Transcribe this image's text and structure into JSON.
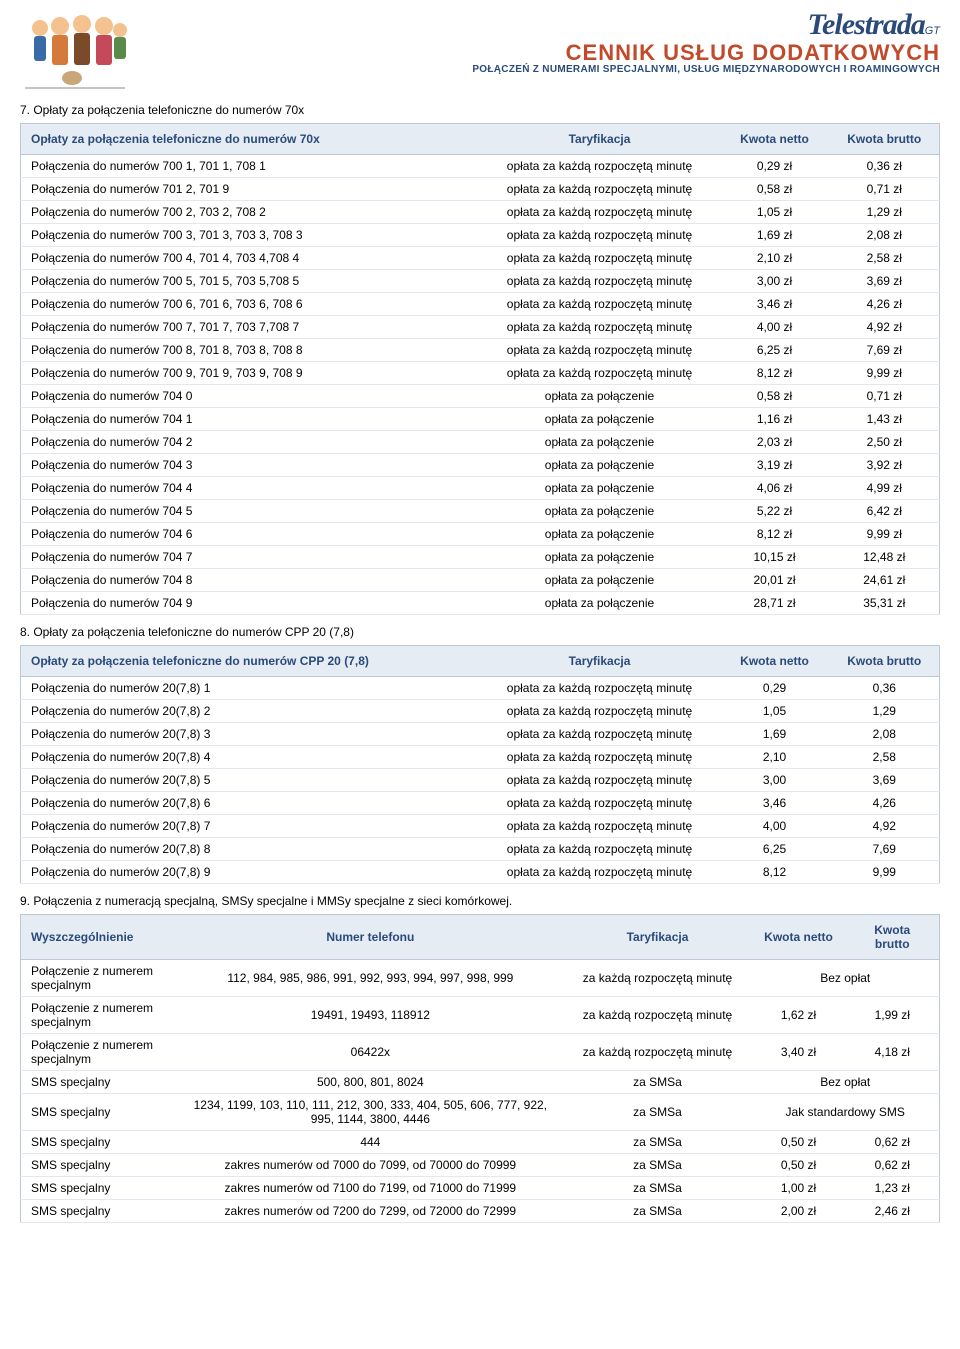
{
  "brand": {
    "name": "Telestrada",
    "suffix": "GT"
  },
  "title": {
    "main": "CENNIK USŁUG DODATKOWYCH",
    "sub": "POŁĄCZEŃ Z NUMERAMI SPECJALNYMI, USŁUG MIĘDZYNARODOWYCH I ROAMINGOWYCH"
  },
  "colors": {
    "header_bg": "#e6ecf4",
    "header_text": "#2a4a7a",
    "border": "#bcc8d8",
    "row_border": "#e3e8f0",
    "title_orange": "#c04a2a"
  },
  "section7": {
    "heading": "7. Opłaty za połączenia telefoniczne do numerów 70x",
    "columns": [
      "Opłaty za połączenia telefoniczne do numerów 70x",
      "Taryfikacja",
      "Kwota netto",
      "Kwota brutto"
    ],
    "rows": [
      [
        "Połączenia do numerów 700 1, 701 1, 708 1",
        "opłata za każdą rozpoczętą minutę",
        "0,29 zł",
        "0,36 zł"
      ],
      [
        "Połączenia do numerów 701 2, 701 9",
        "opłata za każdą rozpoczętą minutę",
        "0,58 zł",
        "0,71 zł"
      ],
      [
        "Połączenia do numerów 700 2, 703 2, 708 2",
        "opłata za każdą rozpoczętą minutę",
        "1,05 zł",
        "1,29 zł"
      ],
      [
        "Połączenia do numerów 700 3, 701 3, 703 3, 708 3",
        "opłata za każdą rozpoczętą minutę",
        "1,69 zł",
        "2,08 zł"
      ],
      [
        "Połączenia do numerów 700 4, 701 4, 703 4,708 4",
        "opłata za każdą rozpoczętą minutę",
        "2,10 zł",
        "2,58 zł"
      ],
      [
        "Połączenia do numerów 700 5, 701 5, 703 5,708 5",
        "opłata za każdą rozpoczętą minutę",
        "3,00 zł",
        "3,69 zł"
      ],
      [
        "Połączenia do numerów 700 6, 701 6, 703 6, 708 6",
        "opłata za każdą rozpoczętą minutę",
        "3,46 zł",
        "4,26 zł"
      ],
      [
        "Połączenia do numerów 700 7, 701 7, 703 7,708 7",
        "opłata za każdą rozpoczętą minutę",
        "4,00 zł",
        "4,92 zł"
      ],
      [
        "Połączenia do numerów 700 8, 701 8, 703 8, 708 8",
        "opłata za każdą rozpoczętą minutę",
        "6,25 zł",
        "7,69 zł"
      ],
      [
        "Połączenia do numerów 700 9, 701 9, 703 9, 708 9",
        "opłata za każdą rozpoczętą minutę",
        "8,12 zł",
        "9,99 zł"
      ],
      [
        "Połączenia do numerów 704 0",
        "opłata za połączenie",
        "0,58 zł",
        "0,71 zł"
      ],
      [
        "Połączenia do numerów 704 1",
        "opłata za połączenie",
        "1,16 zł",
        "1,43 zł"
      ],
      [
        "Połączenia do numerów 704 2",
        "opłata za połączenie",
        "2,03 zł",
        "2,50 zł"
      ],
      [
        "Połączenia do numerów 704 3",
        "opłata za połączenie",
        "3,19 zł",
        "3,92 zł"
      ],
      [
        "Połączenia do numerów 704 4",
        "opłata za połączenie",
        "4,06 zł",
        "4,99 zł"
      ],
      [
        "Połączenia do numerów 704 5",
        "opłata za połączenie",
        "5,22 zł",
        "6,42 zł"
      ],
      [
        "Połączenia do numerów 704 6",
        "opłata za połączenie",
        "8,12 zł",
        "9,99 zł"
      ],
      [
        "Połączenia do numerów 704 7",
        "opłata za połączenie",
        "10,15 zł",
        "12,48 zł"
      ],
      [
        "Połączenia do numerów 704 8",
        "opłata za połączenie",
        "20,01 zł",
        "24,61 zł"
      ],
      [
        "Połączenia do numerów 704 9",
        "opłata za połączenie",
        "28,71 zł",
        "35,31 zł"
      ]
    ]
  },
  "section8": {
    "heading": "8. Opłaty za połączenia telefoniczne do numerów CPP 20 (7,8)",
    "columns": [
      "Opłaty za połączenia telefoniczne do numerów CPP 20 (7,8)",
      "Taryfikacja",
      "Kwota netto",
      "Kwota brutto"
    ],
    "rows": [
      [
        "Połączenia do numerów 20(7,8) 1",
        "opłata za każdą rozpoczętą minutę",
        "0,29",
        "0,36"
      ],
      [
        "Połączenia do numerów 20(7,8) 2",
        "opłata za każdą rozpoczętą minutę",
        "1,05",
        "1,29"
      ],
      [
        "Połączenia do numerów 20(7,8) 3",
        "opłata za każdą rozpoczętą minutę",
        "1,69",
        "2,08"
      ],
      [
        "Połączenia do numerów 20(7,8) 4",
        "opłata za każdą rozpoczętą minutę",
        "2,10",
        "2,58"
      ],
      [
        "Połączenia do numerów 20(7,8) 5",
        "opłata za każdą rozpoczętą minutę",
        "3,00",
        "3,69"
      ],
      [
        "Połączenia do numerów 20(7,8) 6",
        "opłata za każdą rozpoczętą minutę",
        "3,46",
        "4,26"
      ],
      [
        "Połączenia do numerów 20(7,8) 7",
        "opłata za każdą rozpoczętą minutę",
        "4,00",
        "4,92"
      ],
      [
        "Połączenia do numerów 20(7,8) 8",
        "opłata za każdą rozpoczętą minutę",
        "6,25",
        "7,69"
      ],
      [
        "Połączenia do numerów 20(7,8) 9",
        "opłata za każdą rozpoczętą minutę",
        "8,12",
        "9,99"
      ]
    ]
  },
  "section9": {
    "heading": "9. Połączenia z numeracją specjalną, SMSy specjalne i MMSy specjalne z sieci komórkowej.",
    "columns": [
      "Wyszczególnienie",
      "Numer telefonu",
      "Taryfikacja",
      "Kwota netto",
      "Kwota brutto"
    ],
    "rows": [
      {
        "c0": "Połączenie z numerem specjalnym",
        "c1": "112, 984, 985, 986, 991, 992, 993, 994, 997, 998, 999",
        "c2": "za każdą rozpoczętą minutę",
        "span": "Bez opłat"
      },
      {
        "c0": "Połączenie z numerem specjalnym",
        "c1": "19491, 19493, 118912",
        "c2": "za każdą rozpoczętą minutę",
        "c3": "1,62 zł",
        "c4": "1,99 zł"
      },
      {
        "c0": "Połączenie z numerem specjalnym",
        "c1": "06422x",
        "c2": "za każdą rozpoczętą minutę",
        "c3": "3,40 zł",
        "c4": "4,18 zł"
      },
      {
        "c0": "SMS specjalny",
        "c1": "500, 800, 801, 8024",
        "c2": "za SMSa",
        "span": "Bez opłat"
      },
      {
        "c0": "SMS specjalny",
        "c1": "1234, 1199, 103, 110, 111, 212, 300, 333, 404, 505, 606, 777, 922, 995, 1144, 3800, 4446",
        "c2": "za SMSa",
        "span": "Jak standardowy SMS"
      },
      {
        "c0": "SMS specjalny",
        "c1": "444",
        "c2": "za SMSa",
        "c3": "0,50 zł",
        "c4": "0,62 zł"
      },
      {
        "c0": "SMS specjalny",
        "c1": "zakres numerów od 7000 do 7099, od 70000 do 70999",
        "c2": "za SMSa",
        "c3": "0,50 zł",
        "c4": "0,62 zł"
      },
      {
        "c0": "SMS specjalny",
        "c1": "zakres numerów od 7100 do 7199, od 71000 do 71999",
        "c2": "za SMSa",
        "c3": "1,00 zł",
        "c4": "1,23 zł"
      },
      {
        "c0": "SMS specjalny",
        "c1": "zakres numerów od 7200 do 7299, od 72000 do 72999",
        "c2": "za SMSa",
        "c3": "2,00 zł",
        "c4": "2,46 zł"
      }
    ]
  }
}
